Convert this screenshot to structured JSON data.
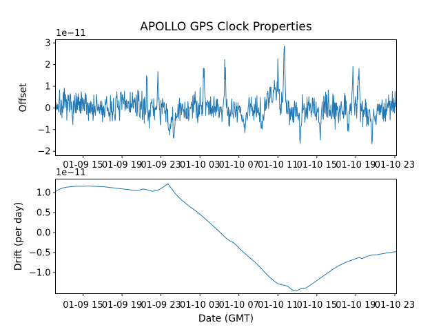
{
  "figure": {
    "title": "APOLLO GPS Clock Properties",
    "background_color": "#ffffff",
    "axes_color": "#000000",
    "accent_line_color": "#1f77b4"
  },
  "chart_data": [
    {
      "type": "line",
      "id": "offset",
      "ylabel": "Offset",
      "xlabel": "",
      "y_scale_label": "1e−11",
      "legend": "none",
      "grid": false,
      "ylim": [
        -2.2,
        3.15
      ],
      "y_ticks": [
        {
          "v": 3,
          "label": "3"
        },
        {
          "v": 2,
          "label": "2"
        },
        {
          "v": 1,
          "label": "1"
        },
        {
          "v": 0,
          "label": "0"
        },
        {
          "v": -1,
          "label": "−1"
        },
        {
          "v": -2,
          "label": "−2"
        }
      ],
      "x_ticks": [
        {
          "f": 0.0808,
          "label": "01-09 15"
        },
        {
          "f": 0.1951,
          "label": "01-09 19"
        },
        {
          "f": 0.3093,
          "label": "01-09 23"
        },
        {
          "f": 0.4236,
          "label": "01-10 03"
        },
        {
          "f": 0.5378,
          "label": "01-10 07"
        },
        {
          "f": 0.6521,
          "label": "01-10 11"
        },
        {
          "f": 0.7664,
          "label": "01-10 15"
        },
        {
          "f": 0.8806,
          "label": "01-10 19"
        },
        {
          "f": 0.9949,
          "label": "01-10 23"
        }
      ],
      "line_color": "#1f77b4",
      "line_width": 1.0,
      "series_description": "Dense noisy clock-offset residuals centered on 0 (units 1e-11 s), std ~0.35, with isolated spikes and dips listed in noise_model.features",
      "noise_model": {
        "seed": 7,
        "n": 900,
        "noise_sigma": 0.34,
        "clamp": [
          -1.78,
          2.86
        ],
        "wander": [
          [
            0.12,
            31,
            0.8
          ],
          [
            0.08,
            57,
            2.1
          ],
          [
            0.06,
            13,
            0.0
          ]
        ],
        "features": [
          {
            "f": 0.268,
            "amp": 1.15,
            "w": 0.0025
          },
          {
            "f": 0.3,
            "amp": 1.55,
            "w": 0.0025
          },
          {
            "f": 0.335,
            "amp": -0.7,
            "w": 0.01
          },
          {
            "f": 0.348,
            "amp": -0.95,
            "w": 0.004
          },
          {
            "f": 0.435,
            "amp": 1.85,
            "w": 0.0025
          },
          {
            "f": 0.497,
            "amp": 2.05,
            "w": 0.0028
          },
          {
            "f": 0.552,
            "amp": -0.8,
            "w": 0.009
          },
          {
            "f": 0.605,
            "amp": -1.05,
            "w": 0.0025
          },
          {
            "f": 0.64,
            "amp": 0.55,
            "w": 0.012
          },
          {
            "f": 0.652,
            "amp": 1.5,
            "w": 0.0028
          },
          {
            "f": 0.671,
            "amp": 2.65,
            "w": 0.0032
          },
          {
            "f": 0.718,
            "amp": -1.45,
            "w": 0.0025
          },
          {
            "f": 0.776,
            "amp": -1.7,
            "w": 0.0025
          },
          {
            "f": 0.858,
            "amp": -0.95,
            "w": 0.0028
          },
          {
            "f": 0.872,
            "amp": 1.4,
            "w": 0.0028
          },
          {
            "f": 0.889,
            "amp": 1.85,
            "w": 0.003
          },
          {
            "f": 0.928,
            "amp": -1.25,
            "w": 0.003
          }
        ]
      }
    },
    {
      "type": "line",
      "id": "drift",
      "ylabel": "Drift (per day)",
      "xlabel": "Date (GMT)",
      "y_scale_label": "1e−11",
      "legend": "none",
      "grid": false,
      "ylim": [
        -1.53,
        1.34
      ],
      "y_ticks": [
        {
          "v": 1.0,
          "label": "1.0"
        },
        {
          "v": 0.5,
          "label": "0.5"
        },
        {
          "v": 0.0,
          "label": "0.0"
        },
        {
          "v": -0.5,
          "label": "−0.5"
        },
        {
          "v": -1.0,
          "label": "−1.0"
        }
      ],
      "x_ticks": [
        {
          "f": 0.0808,
          "label": "01-09 15"
        },
        {
          "f": 0.1951,
          "label": "01-09 19"
        },
        {
          "f": 0.3093,
          "label": "01-09 23"
        },
        {
          "f": 0.4236,
          "label": "01-10 03"
        },
        {
          "f": 0.5378,
          "label": "01-10 07"
        },
        {
          "f": 0.6521,
          "label": "01-10 11"
        },
        {
          "f": 0.7664,
          "label": "01-10 15"
        },
        {
          "f": 0.8806,
          "label": "01-10 19"
        },
        {
          "f": 0.9949,
          "label": "01-10 23"
        }
      ],
      "line_color": "#1f77b4",
      "line_width": 1.0,
      "points_fv": [
        [
          0.0,
          1.03
        ],
        [
          0.01,
          1.08
        ],
        [
          0.022,
          1.12
        ],
        [
          0.035,
          1.14
        ],
        [
          0.05,
          1.155
        ],
        [
          0.065,
          1.16
        ],
        [
          0.08,
          1.16
        ],
        [
          0.095,
          1.165
        ],
        [
          0.11,
          1.16
        ],
        [
          0.125,
          1.155
        ],
        [
          0.14,
          1.15
        ],
        [
          0.155,
          1.135
        ],
        [
          0.17,
          1.12
        ],
        [
          0.185,
          1.105
        ],
        [
          0.2,
          1.09
        ],
        [
          0.215,
          1.075
        ],
        [
          0.228,
          1.06
        ],
        [
          0.24,
          1.05
        ],
        [
          0.25,
          1.075
        ],
        [
          0.258,
          1.09
        ],
        [
          0.266,
          1.075
        ],
        [
          0.275,
          1.055
        ],
        [
          0.285,
          1.035
        ],
        [
          0.295,
          1.05
        ],
        [
          0.305,
          1.08
        ],
        [
          0.315,
          1.13
        ],
        [
          0.324,
          1.19
        ],
        [
          0.33,
          1.22
        ],
        [
          0.336,
          1.15
        ],
        [
          0.344,
          1.06
        ],
        [
          0.352,
          0.97
        ],
        [
          0.362,
          0.88
        ],
        [
          0.372,
          0.8
        ],
        [
          0.382,
          0.73
        ],
        [
          0.392,
          0.66
        ],
        [
          0.402,
          0.6
        ],
        [
          0.412,
          0.54
        ],
        [
          0.422,
          0.47
        ],
        [
          0.432,
          0.4
        ],
        [
          0.442,
          0.32
        ],
        [
          0.452,
          0.25
        ],
        [
          0.462,
          0.17
        ],
        [
          0.472,
          0.09
        ],
        [
          0.482,
          0.01
        ],
        [
          0.492,
          -0.07
        ],
        [
          0.502,
          -0.15
        ],
        [
          0.512,
          -0.21
        ],
        [
          0.522,
          -0.25
        ],
        [
          0.532,
          -0.33
        ],
        [
          0.542,
          -0.42
        ],
        [
          0.552,
          -0.5
        ],
        [
          0.562,
          -0.57
        ],
        [
          0.572,
          -0.65
        ],
        [
          0.582,
          -0.72
        ],
        [
          0.592,
          -0.8
        ],
        [
          0.602,
          -0.89
        ],
        [
          0.612,
          -0.98
        ],
        [
          0.622,
          -1.07
        ],
        [
          0.632,
          -1.15
        ],
        [
          0.642,
          -1.22
        ],
        [
          0.652,
          -1.28
        ],
        [
          0.662,
          -1.31
        ],
        [
          0.672,
          -1.32
        ],
        [
          0.682,
          -1.35
        ],
        [
          0.69,
          -1.41
        ],
        [
          0.698,
          -1.45
        ],
        [
          0.706,
          -1.46
        ],
        [
          0.714,
          -1.43
        ],
        [
          0.72,
          -1.4
        ],
        [
          0.728,
          -1.41
        ],
        [
          0.736,
          -1.38
        ],
        [
          0.745,
          -1.33
        ],
        [
          0.755,
          -1.27
        ],
        [
          0.765,
          -1.21
        ],
        [
          0.775,
          -1.15
        ],
        [
          0.785,
          -1.09
        ],
        [
          0.795,
          -1.03
        ],
        [
          0.805,
          -0.97
        ],
        [
          0.815,
          -0.91
        ],
        [
          0.825,
          -0.86
        ],
        [
          0.835,
          -0.81
        ],
        [
          0.845,
          -0.77
        ],
        [
          0.855,
          -0.73
        ],
        [
          0.865,
          -0.7
        ],
        [
          0.875,
          -0.67
        ],
        [
          0.885,
          -0.64
        ],
        [
          0.893,
          -0.625
        ],
        [
          0.898,
          -0.655
        ],
        [
          0.903,
          -0.64
        ],
        [
          0.912,
          -0.6
        ],
        [
          0.922,
          -0.575
        ],
        [
          0.932,
          -0.56
        ],
        [
          0.942,
          -0.555
        ],
        [
          0.952,
          -0.54
        ],
        [
          0.962,
          -0.525
        ],
        [
          0.972,
          -0.51
        ],
        [
          0.982,
          -0.5
        ],
        [
          0.992,
          -0.485
        ],
        [
          1.0,
          -0.475
        ]
      ]
    }
  ]
}
